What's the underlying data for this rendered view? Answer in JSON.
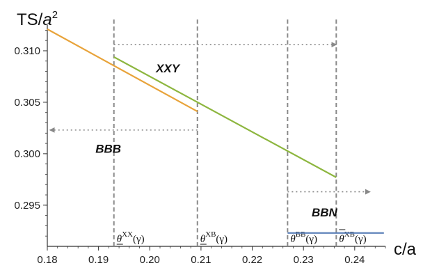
{
  "chart_data": {
    "type": "line",
    "y_axis_label": {
      "base": "TS/",
      "var": "a",
      "sup": "2"
    },
    "x_axis_label": "c/a",
    "xlim": [
      0.18,
      0.246
    ],
    "ylim": [
      0.291,
      0.3125
    ],
    "x_ticks": [
      "0.18",
      "0.19",
      "0.20",
      "0.21",
      "0.22",
      "0.23",
      "0.24"
    ],
    "x_tick_values": [
      0.18,
      0.19,
      0.2,
      0.21,
      0.22,
      0.23,
      0.24
    ],
    "y_ticks": [
      "0.295",
      "0.300",
      "0.305",
      "0.310"
    ],
    "y_tick_values": [
      0.295,
      0.3,
      0.305,
      0.31
    ],
    "series": [
      {
        "color": "#e8a33a",
        "points": [
          [
            0.18,
            0.3121
          ],
          [
            0.2093,
            0.3041
          ]
        ]
      },
      {
        "color": "#8db63f",
        "points": [
          [
            0.193,
            0.3094
          ],
          [
            0.2364,
            0.2977
          ]
        ]
      },
      {
        "color": "#5b80b8",
        "points": [
          [
            0.2269,
            0.2923
          ],
          [
            0.2457,
            0.2923
          ]
        ]
      }
    ],
    "vertical_lines": [
      {
        "x": 0.193,
        "label_main": "θ",
        "label_sup": "XX",
        "label_arg": "(γ)",
        "bar": "under"
      },
      {
        "x": 0.2093,
        "label_main": "θ",
        "label_sup": "XB",
        "label_arg": "(γ)",
        "bar": "under"
      },
      {
        "x": 0.2269,
        "label_main": "θ",
        "label_sup": "BB",
        "label_arg": "(γ)",
        "bar": "none"
      },
      {
        "x": 0.2364,
        "label_main": "θ",
        "label_sup": "XB",
        "label_arg": "(γ)",
        "bar": "over"
      }
    ],
    "arrows": [
      {
        "x_from": 0.193,
        "x_to": 0.2364,
        "y": 0.3106,
        "color": "#888888"
      },
      {
        "x_from": 0.2093,
        "x_to": 0.1805,
        "y": 0.3023,
        "color": "#888888"
      },
      {
        "x_from": 0.2269,
        "x_to": 0.243,
        "y": 0.2963,
        "color": "#888888"
      }
    ],
    "region_labels": [
      {
        "text": "XXY",
        "x": 0.2012,
        "y": 0.3079
      },
      {
        "text": "BBB",
        "x": 0.1894,
        "y": 0.3001
      },
      {
        "text": "BBN",
        "x": 0.2316,
        "y": 0.2939
      }
    ],
    "grid": false
  }
}
